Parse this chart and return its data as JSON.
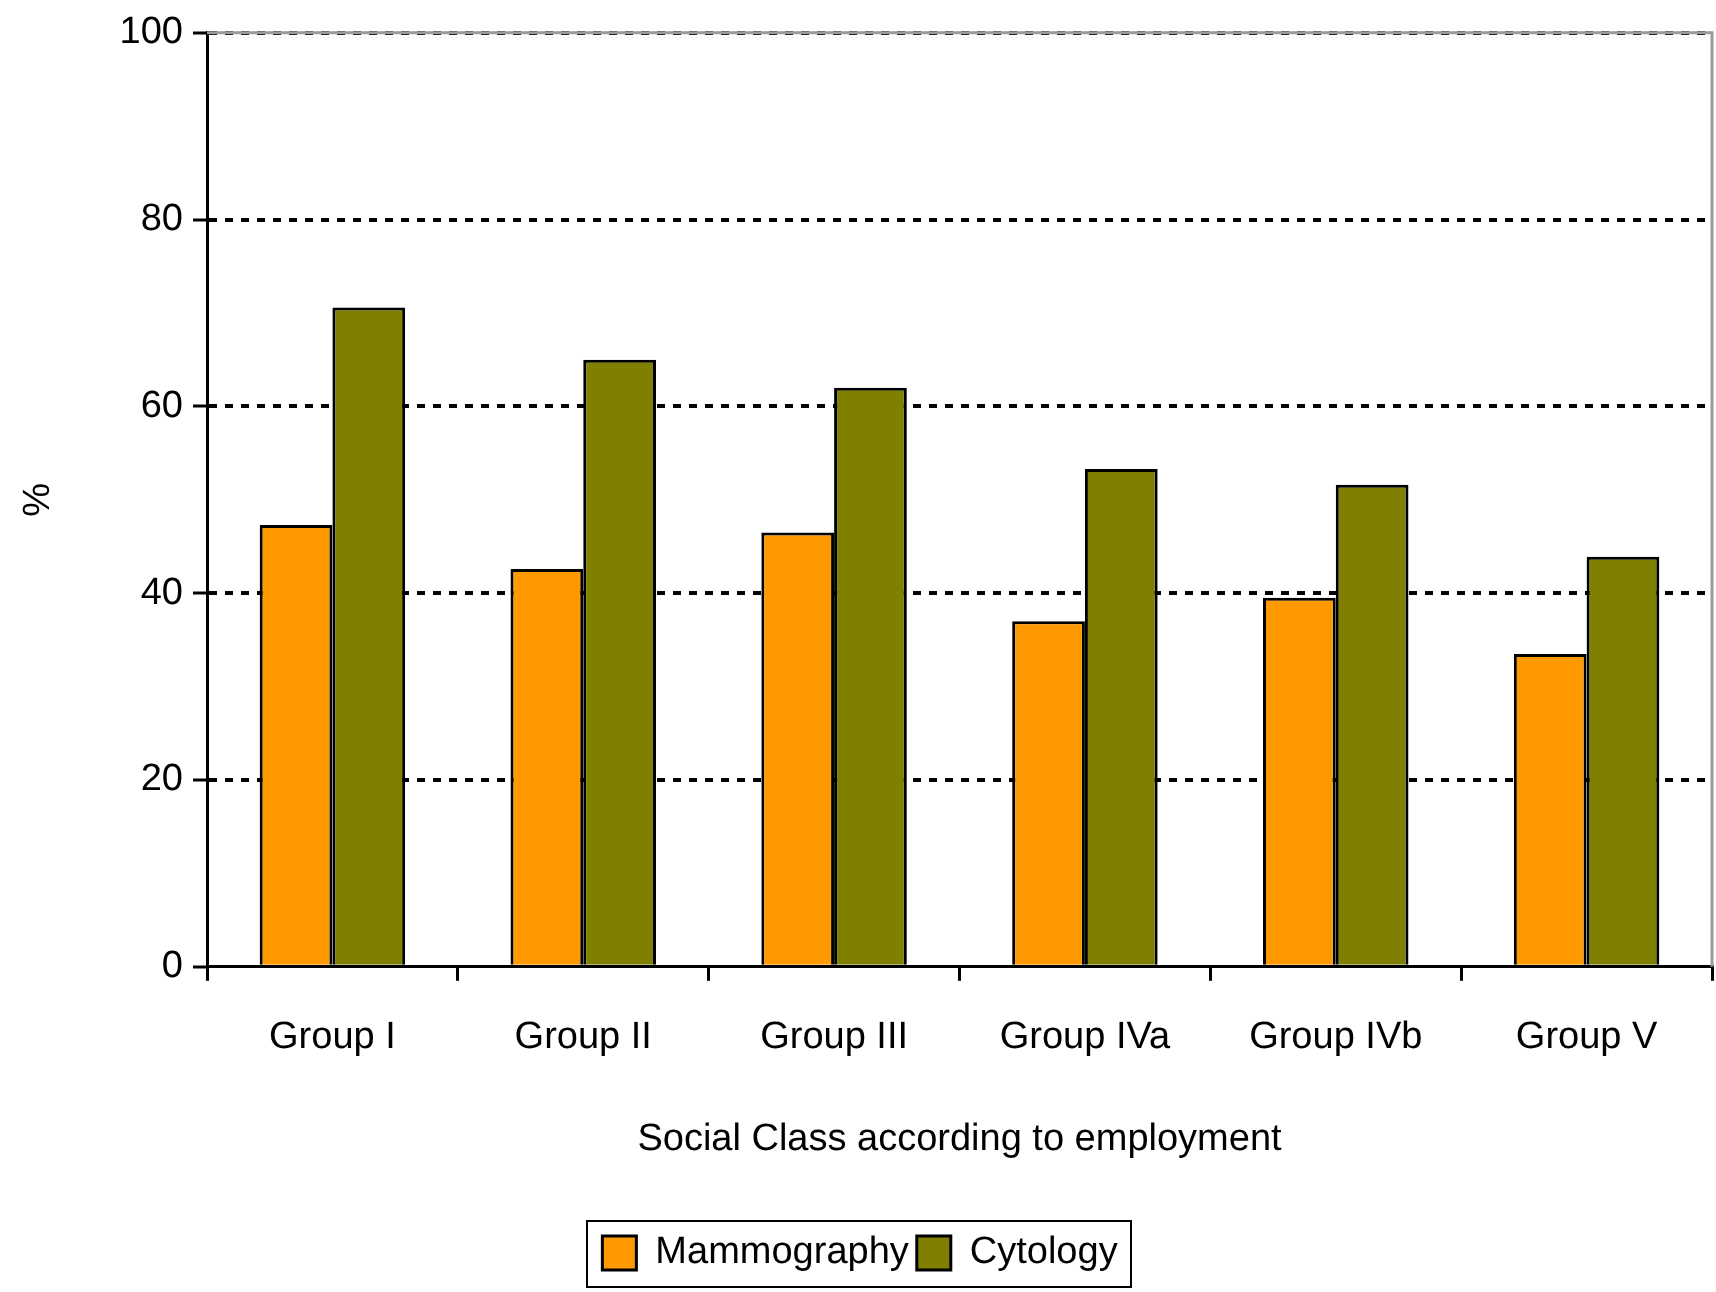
{
  "chart_data": {
    "type": "bar",
    "xlabel": "Social Class according to employment",
    "ylabel": "%",
    "categories": [
      "Group I",
      "Group II",
      "Group III",
      "Group IVa",
      "Group IVb",
      "Group V"
    ],
    "series": [
      {
        "name": "Mammography",
        "color": "#ff9900",
        "values": [
          47.3,
          42.6,
          46.5,
          37.0,
          39.5,
          33.5
        ]
      },
      {
        "name": "Cytology",
        "color": "#808000",
        "values": [
          70.6,
          65.0,
          62.0,
          53.3,
          51.6,
          43.9
        ]
      }
    ],
    "ylim": [
      0,
      100
    ],
    "yticks": [
      0,
      20,
      40,
      60,
      80,
      100
    ],
    "grid": "y",
    "legend": "bottom"
  }
}
